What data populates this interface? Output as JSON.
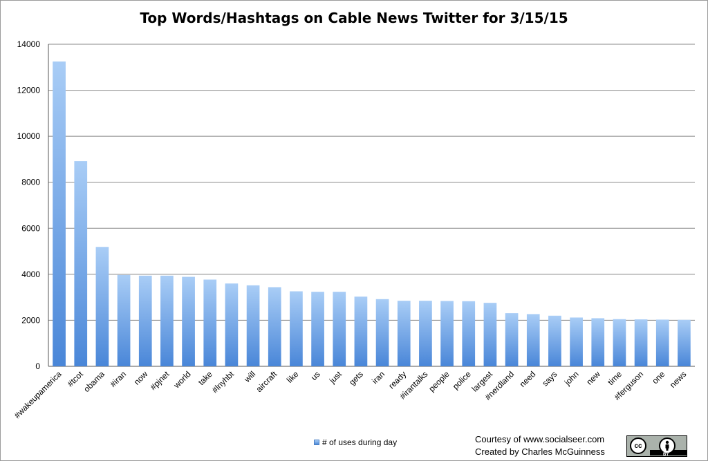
{
  "chart_data": {
    "type": "bar",
    "title": "Top Words/Hashtags on Cable News Twitter for 3/15/15",
    "categories": [
      "#wakeupamerica",
      "#tcot",
      "obama",
      "#iran",
      "now",
      "#pjnet",
      "world",
      "take",
      "#lnyhbt",
      "will",
      "aircraft",
      "like",
      "us",
      "just",
      "gets",
      "iran",
      "ready",
      "#irantalks",
      "people",
      "police",
      "largest",
      "#nerdland",
      "need",
      "says",
      "john",
      "new",
      "time",
      "#ferguson",
      "one",
      "news"
    ],
    "series": [
      {
        "name": "# of uses during day",
        "values": [
          13250,
          8920,
          5190,
          3970,
          3940,
          3940,
          3890,
          3770,
          3600,
          3520,
          3440,
          3260,
          3240,
          3240,
          3030,
          2920,
          2850,
          2850,
          2840,
          2830,
          2760,
          2310,
          2270,
          2200,
          2120,
          2090,
          2050,
          2040,
          2030,
          2020
        ]
      }
    ],
    "xlabel": "",
    "ylabel": "",
    "ylim": [
      0,
      14000
    ],
    "yticks": [
      0,
      2000,
      4000,
      6000,
      8000,
      10000,
      12000,
      14000
    ],
    "grid": true,
    "legend": "bottom",
    "colors": {
      "bar_top": "#a9cdf6",
      "bar_bottom": "#4986d8",
      "grid": "#888888",
      "axis": "#555555"
    }
  },
  "credits": {
    "line1": "Courtesy of www.socialseer.com",
    "line2": "Created by Charles McGuinness"
  },
  "license_badge": {
    "logo_text": "cc",
    "by_text": "BY",
    "icon": "person-icon"
  }
}
